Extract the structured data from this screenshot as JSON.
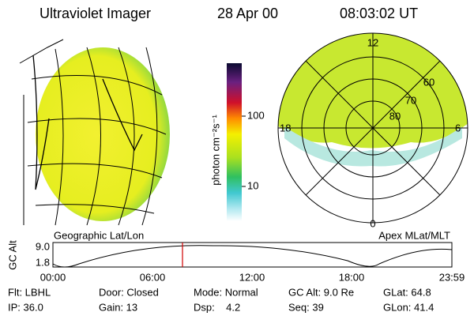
{
  "header": {
    "title": "Ultraviolet Imager",
    "date": "28 Apr 00",
    "time": "08:03:02 UT"
  },
  "colorbar": {
    "label": "photon cm⁻²s⁻¹",
    "ticks": [
      "100",
      "10"
    ]
  },
  "geo_panel": {
    "caption": "Geographic Lat/Lon"
  },
  "polar_panel": {
    "caption": "Apex MLat/MLT",
    "labels": [
      "12",
      "60",
      "70",
      "80",
      "18",
      "6",
      "0"
    ]
  },
  "altitude_plot": {
    "ylabel": "GC Alt",
    "yticks": [
      "9.0",
      "1.8"
    ],
    "xticks": [
      "00:00",
      "06:00",
      "12:00",
      "18:00",
      "23:59"
    ]
  },
  "info": {
    "rows": [
      [
        "Flt: LBHL",
        "Door: Closed",
        "Mode: Normal",
        "GC Alt: 9.0 Re",
        "GLat: 64.8"
      ],
      [
        "IP: 36.0",
        "Gain: 13",
        "Dsp:    4.2",
        "Seq: 39",
        "GLon: 41.4"
      ]
    ]
  }
}
